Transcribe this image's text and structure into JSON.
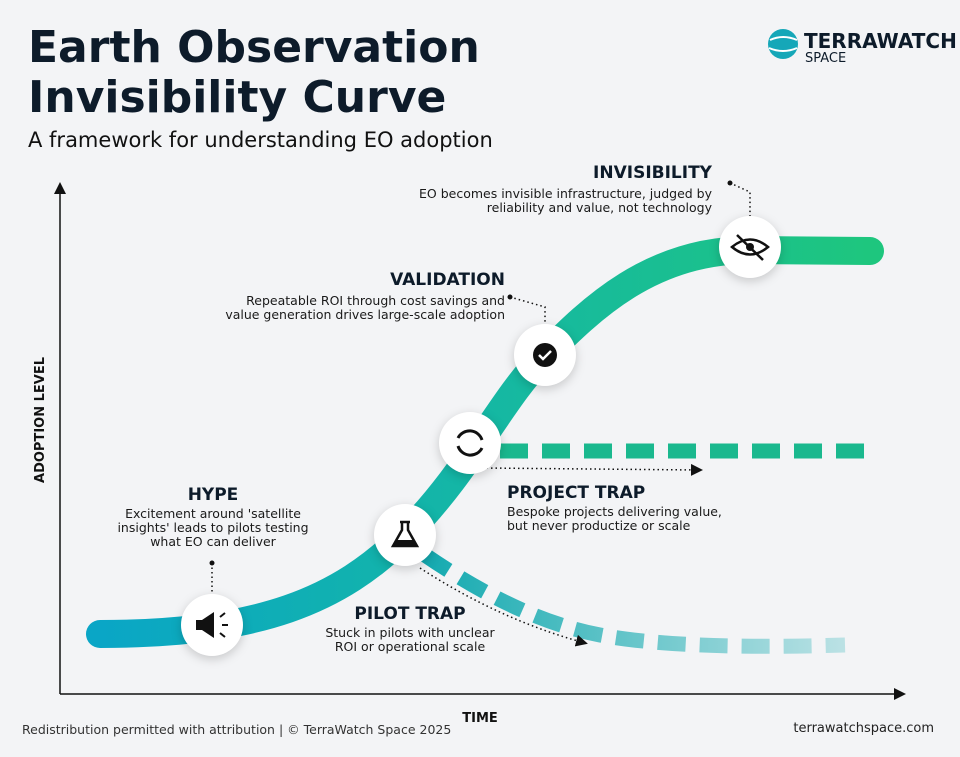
{
  "header": {
    "title_lines": [
      "Earth Observation",
      "Invisibility Curve"
    ],
    "subtitle": "A framework for understanding EO adoption"
  },
  "logo": {
    "name": "TERRAWATCH",
    "sub": "SPACE"
  },
  "axes": {
    "y_label": "ADOPTION LEVEL",
    "x_label": "TIME"
  },
  "stages": [
    {
      "title": "INVISIBILITY",
      "description": [
        "EO becomes invisible infrastructure, judged by",
        "reliability and value, not technology"
      ]
    },
    {
      "title": "VALIDATION",
      "description": [
        "Repeatable ROI through cost savings and",
        "value generation drives large-scale adoption"
      ]
    },
    {
      "title": "HYPE",
      "description": [
        "Excitement around 'satellite",
        "insights' leads to pilots testing",
        "what EO can deliver"
      ]
    },
    {
      "title": "PROJECT TRAP",
      "description": [
        "Bespoke projects delivering value,",
        "but never productize or scale"
      ]
    },
    {
      "title": "PILOT TRAP",
      "description": [
        "Stuck in pilots with unclear",
        "ROI or operational scale"
      ]
    }
  ],
  "footer": {
    "left": "Redistribution permitted with attribution | © TerraWatch Space 2025",
    "right": "terrawatchspace.com"
  }
}
